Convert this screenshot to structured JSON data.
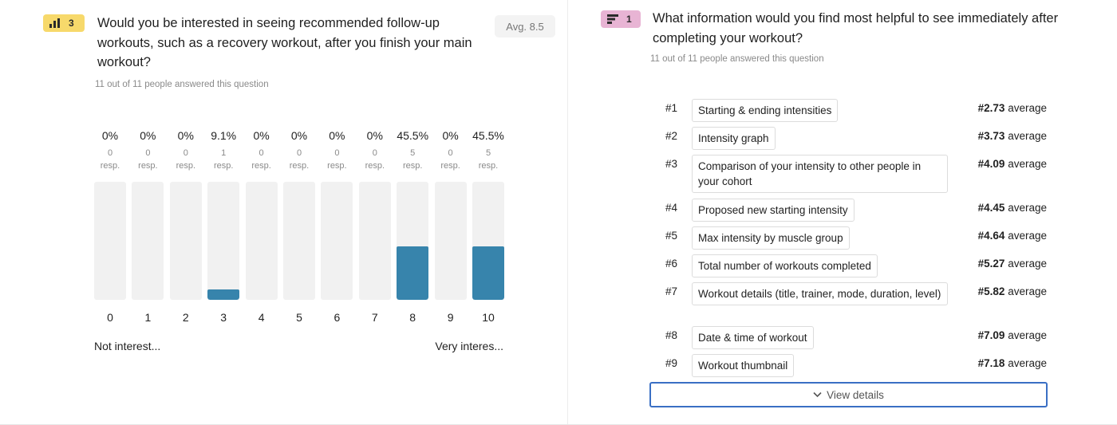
{
  "left": {
    "badge_number": "3",
    "badge_icon": "bar-chart-icon",
    "title": "Would you be interested in seeing recommended follow-up workouts, such as a recovery workout, after you finish your main workout?",
    "subtitle": "11 out of 11 people answered this question",
    "avg_label": "Avg. 8.5",
    "scale_low": "Not interest...",
    "scale_high": "Very interes...",
    "accent_color": "#3784ac"
  },
  "chart_data": {
    "type": "bar",
    "categories": [
      "0",
      "1",
      "2",
      "3",
      "4",
      "5",
      "6",
      "7",
      "8",
      "9",
      "10"
    ],
    "percent_labels": [
      "0%",
      "0%",
      "0%",
      "9.1%",
      "0%",
      "0%",
      "0%",
      "0%",
      "45.5%",
      "0%",
      "45.5%"
    ],
    "counts": [
      "0",
      "0",
      "0",
      "1",
      "0",
      "0",
      "0",
      "0",
      "5",
      "0",
      "5"
    ],
    "resp_label": "resp.",
    "values": [
      0,
      0,
      0,
      9.1,
      0,
      0,
      0,
      0,
      45.5,
      0,
      45.5
    ],
    "ylim": [
      0,
      100
    ]
  },
  "right": {
    "badge_number": "1",
    "badge_icon": "ranking-icon",
    "title": "What information would you find most helpful to see immediately after completing your workout?",
    "subtitle": "11 out of 11 people answered this question",
    "average_suffix": "average",
    "items": [
      {
        "rank": "#1",
        "label": "Starting & ending intensities",
        "avg": "#2.73"
      },
      {
        "rank": "#2",
        "label": "Intensity graph",
        "avg": "#3.73"
      },
      {
        "rank": "#3",
        "label": "Comparison of your intensity to other people in your cohort",
        "avg": "#4.09"
      },
      {
        "rank": "#4",
        "label": "Proposed new starting intensity",
        "avg": "#4.45"
      },
      {
        "rank": "#5",
        "label": "Max intensity by muscle group",
        "avg": "#4.64"
      },
      {
        "rank": "#6",
        "label": "Total number of workouts completed",
        "avg": "#5.27"
      },
      {
        "rank": "#7",
        "label": "Workout details (title, trainer, mode, duration, level)",
        "avg": "#5.82"
      },
      {
        "rank": "#8",
        "label": "Date & time of workout",
        "avg": "#7.09"
      },
      {
        "rank": "#9",
        "label": "Workout thumbnail",
        "avg": "#7.18"
      }
    ],
    "view_details_label": "View details"
  }
}
